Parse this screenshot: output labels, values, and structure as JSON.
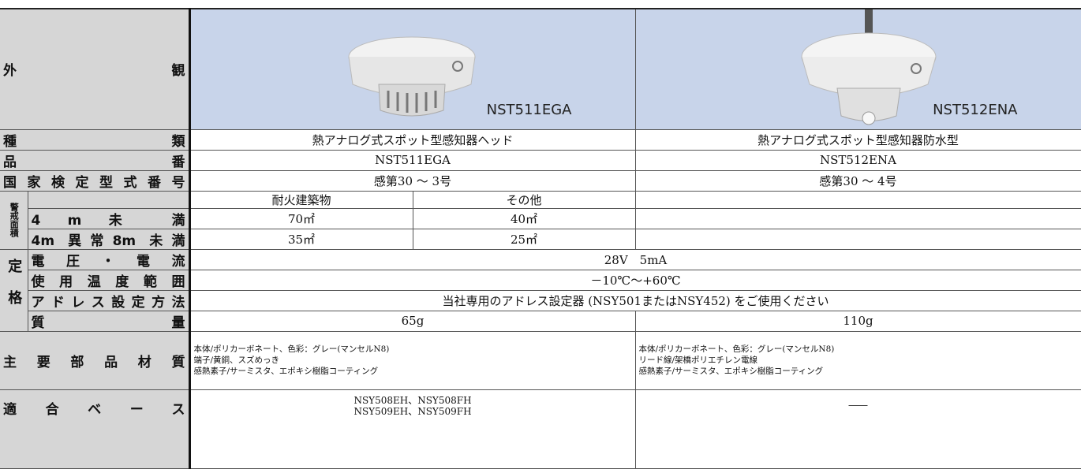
{
  "labels": {
    "appearance": "外　観",
    "type": "種　類",
    "model": "品　番",
    "cert": "国家検定型式番号",
    "alarm_area": "警戒面積",
    "under4": "4 m 未 満",
    "four_to_eight": "4m 異常8m 未満",
    "rating": "定格",
    "voltage": "電圧・電流",
    "temp": "使用温度範囲",
    "address": "アドレス設定方法",
    "mass": "質　量",
    "materials": "主要部品材質",
    "base": "適合ベース"
  },
  "products": [
    {
      "caption": "NST511EGA",
      "type": "熱アナログ式スポット型感知器ヘッド",
      "model": "NST511EGA",
      "cert": "感第30 ～ 3号",
      "mass": "65g",
      "materials": [
        "本体/ポリカーボネート、色彩：グレー(マンセルN8)",
        "端子/黄銅、スズめっき",
        "感熱素子/サーミスタ、エポキシ樹脂コーティング"
      ],
      "base": [
        "NSY508EH、NSY508FH",
        "NSY509EH、NSY509FH"
      ]
    },
    {
      "caption": "NST512ENA",
      "type": "熱アナログ式スポット型感知器防水型",
      "model": "NST512ENA",
      "cert": "感第30 ～ 4号",
      "mass": "110g",
      "materials": [
        "本体/ポリカーボネート、色彩：グレー(マンセルN8)",
        "リード線/架橋ポリエチレン電線",
        "感熱素子/サーミスタ、エポキシ樹脂コーティング"
      ],
      "base": [
        "――"
      ]
    }
  ],
  "area": {
    "headers": [
      "耐火建築物",
      "その他"
    ],
    "under4": [
      "70㎡",
      "40㎡"
    ],
    "four_to_eight": [
      "35㎡",
      "25㎡"
    ]
  },
  "common": {
    "voltage": "28V　5mA",
    "temp": "－10℃～+60℃",
    "address": "当社専用のアドレス設定器 (NSY501またはNSY452) をご使用ください"
  }
}
